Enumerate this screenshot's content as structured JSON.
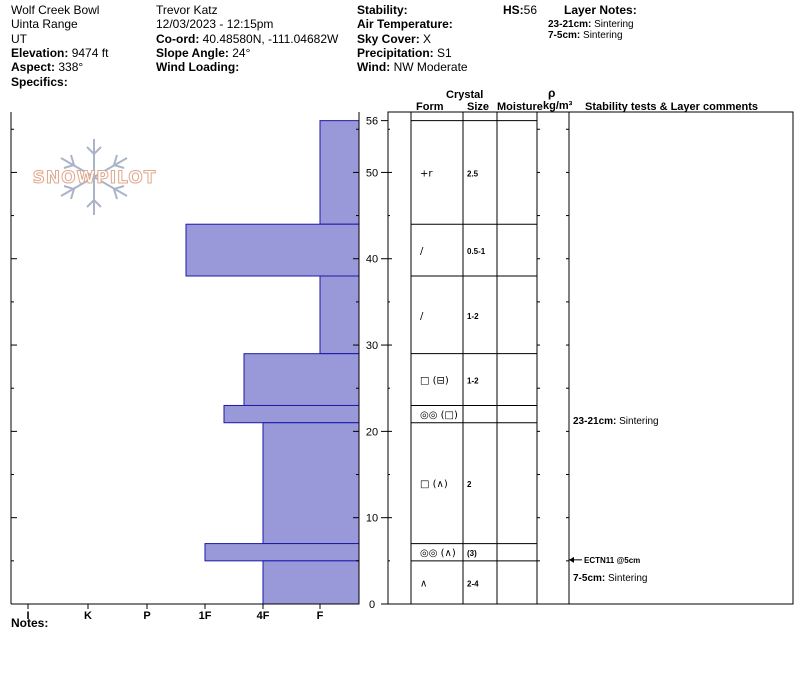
{
  "header": {
    "location": "Wolf Creek Bowl",
    "range": "Uinta Range",
    "state": "UT",
    "elevation_label": "Elevation:",
    "elevation": "9474 ft",
    "aspect_label": "Aspect:",
    "aspect": "338°",
    "specifics_label": "Specifics:",
    "observer": "Trevor Katz",
    "datetime": "12/03/2023 - 12:15pm",
    "coord_label": "Co-ord:",
    "coord": "40.48580N, -111.04682W",
    "slope_label": "Slope Angle:",
    "slope": "24°",
    "wind_loading_label": "Wind Loading:",
    "stability_label": "Stability:",
    "air_temp_label": "Air Temperature:",
    "sky_label": "Sky Cover:",
    "sky": "X",
    "precip_label": "Precipitation:",
    "precip": "S1",
    "wind_label": "Wind:",
    "wind": "NW Moderate",
    "hs_label": "HS:",
    "hs": "56",
    "layer_notes_label": "Layer Notes:",
    "layer_notes": [
      {
        "depth": "23-21cm:",
        "text": "Sintering"
      },
      {
        "depth": "7-5cm:",
        "text": "Sintering"
      }
    ]
  },
  "logo": {
    "text": "SNOWPILOT"
  },
  "columns": {
    "crystal": "Crystal",
    "form": "Form",
    "size": "Size",
    "moisture": "Moisture",
    "rho": "ρ",
    "density_unit": "kg/m³",
    "stability": "Stability tests & Layer comments"
  },
  "chart_data": {
    "type": "bar",
    "orientation": "horizontal",
    "x_categories": [
      "I",
      "K",
      "P",
      "1F",
      "4F",
      "F"
    ],
    "x_note": "hardness index increases toward the left (I = hardest, F = softest)",
    "y_ticks": [
      0,
      10,
      20,
      30,
      40,
      50,
      56
    ],
    "ylim": [
      0,
      57
    ],
    "layers": [
      {
        "top": 56,
        "bottom": 44,
        "hardness": "F",
        "form": "+r",
        "size": "2.5"
      },
      {
        "top": 44,
        "bottom": 38,
        "hardness": "1F+",
        "form": "/",
        "size": "0.5-1"
      },
      {
        "top": 38,
        "bottom": 29,
        "hardness": "F",
        "form": "/",
        "size": "1-2"
      },
      {
        "top": 29,
        "bottom": 23,
        "hardness": "4F+",
        "form": "□ (⊟)",
        "size": "1-2"
      },
      {
        "top": 23,
        "bottom": 21,
        "hardness": "1F-",
        "form": "◎◎ (□)",
        "size": ""
      },
      {
        "top": 21,
        "bottom": 7,
        "hardness": "4F",
        "form": "□ (∧)",
        "size": "2"
      },
      {
        "top": 7,
        "bottom": 5,
        "hardness": "1F",
        "form": "◎◎ (∧)",
        "size": "(3)"
      },
      {
        "top": 5,
        "bottom": 0,
        "hardness": "4F",
        "form": "∧",
        "size": "2-4"
      }
    ],
    "comments": [
      {
        "depth": 22,
        "label": "23-21cm:",
        "text": "Sintering"
      },
      {
        "depth": 5,
        "label": "7-5cm:",
        "text": "Sintering"
      }
    ],
    "tests": [
      {
        "depth": 5,
        "text": "ECTN11 @5cm"
      }
    ]
  },
  "notes_label": "Notes:",
  "colors": {
    "bar_fill": "#9999d9",
    "bar_stroke": "#1a1aa6",
    "grid": "#000000",
    "logo": "#e9c0a8"
  }
}
